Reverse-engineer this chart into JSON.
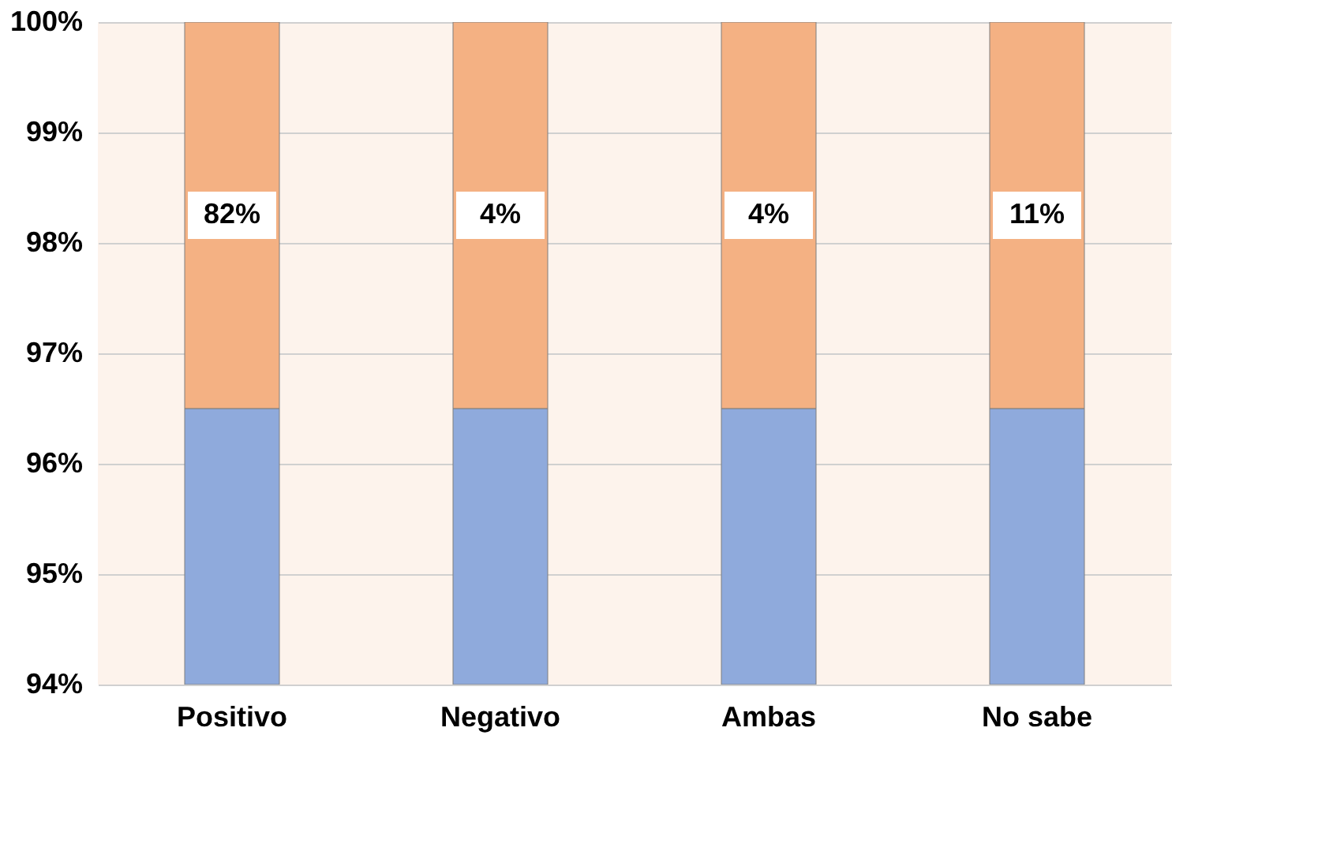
{
  "chart_data": {
    "type": "bar",
    "categories": [
      "Positivo",
      "Negativo",
      "Ambas",
      "No sabe"
    ],
    "series": [
      {
        "color": "#8faadc",
        "base": [
          94,
          94,
          94,
          94
        ],
        "values": [
          2.5,
          2.5,
          2.5,
          2.5
        ]
      },
      {
        "color": "#f4b183",
        "base": [
          96.5,
          96.5,
          96.5,
          96.5
        ],
        "values": [
          3.5,
          3.5,
          3.5,
          3.5
        ]
      }
    ],
    "annotations": [
      "82%",
      "4%",
      "4%",
      "11%"
    ],
    "ylim": [
      94,
      100
    ],
    "yticks": [
      {
        "value": 94,
        "label": "94%"
      },
      {
        "value": 95,
        "label": "95%"
      },
      {
        "value": 96,
        "label": "96%"
      },
      {
        "value": 97,
        "label": "97%"
      },
      {
        "value": 98,
        "label": "98%"
      },
      {
        "value": 99,
        "label": "99%"
      },
      {
        "value": 100,
        "label": "100%"
      }
    ],
    "grid": "y"
  }
}
